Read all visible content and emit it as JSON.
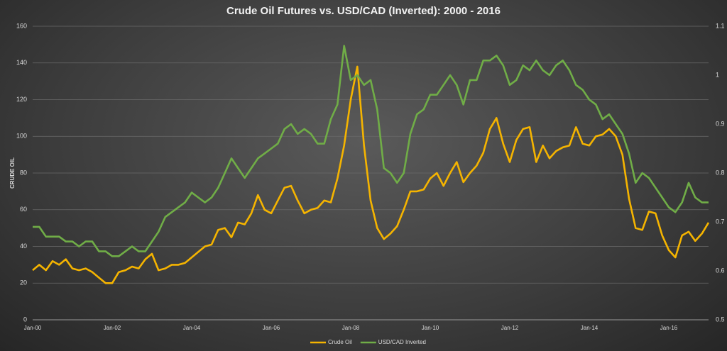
{
  "chart_data": {
    "type": "line",
    "title": "Crude Oil Futures vs. USD/CAD (Inverted): 2000 - 2016",
    "y_label": "CRUDE OIL",
    "categories": [
      "Jan-00",
      null,
      null,
      null,
      null,
      null,
      null,
      null,
      null,
      null,
      null,
      null,
      "Jan-02",
      null,
      null,
      null,
      null,
      null,
      null,
      null,
      null,
      null,
      null,
      null,
      "Jan-04",
      null,
      null,
      null,
      null,
      null,
      null,
      null,
      null,
      null,
      null,
      null,
      "Jan-06",
      null,
      null,
      null,
      null,
      null,
      null,
      null,
      null,
      null,
      null,
      null,
      "Jan-08",
      null,
      null,
      null,
      null,
      null,
      null,
      null,
      null,
      null,
      null,
      null,
      "Jan-10",
      null,
      null,
      null,
      null,
      null,
      null,
      null,
      null,
      null,
      null,
      null,
      "Jan-12",
      null,
      null,
      null,
      null,
      null,
      null,
      null,
      null,
      null,
      null,
      null,
      "Jan-14",
      null,
      null,
      null,
      null,
      null,
      null,
      null,
      null,
      null,
      null,
      null,
      "Jan-16",
      null,
      null,
      null,
      null,
      null,
      null
    ],
    "series": [
      {
        "name": "Crude Oil",
        "color": "#f5b400",
        "values": [
          27,
          30,
          27,
          32,
          30,
          33,
          28,
          27,
          28,
          26,
          23,
          20,
          20,
          26,
          27,
          29,
          28,
          33,
          36,
          27,
          28,
          30,
          30,
          31,
          34,
          37,
          40,
          41,
          49,
          50,
          45,
          53,
          52,
          58,
          68,
          60,
          58,
          65,
          72,
          73,
          65,
          58,
          60,
          61,
          65,
          64,
          77,
          95,
          120,
          138,
          95,
          65,
          50,
          44,
          47,
          51,
          60,
          70,
          70,
          71,
          77,
          80,
          73,
          80,
          86,
          75,
          80,
          84,
          91,
          104,
          110,
          96,
          86,
          98,
          104,
          105,
          86,
          95,
          88,
          92,
          94,
          95,
          105,
          96,
          95,
          100,
          101,
          104,
          100,
          90,
          66,
          50,
          49,
          59,
          58,
          46,
          38,
          34,
          46,
          48,
          43,
          47,
          53
        ]
      },
      {
        "name": "USD/CAD Inverted",
        "color": "#70ad47",
        "axis": "y2",
        "values": [
          0.69,
          0.69,
          0.67,
          0.67,
          0.67,
          0.66,
          0.66,
          0.65,
          0.66,
          0.66,
          0.64,
          0.64,
          0.63,
          0.63,
          0.64,
          0.65,
          0.64,
          0.64,
          0.66,
          0.68,
          0.71,
          0.72,
          0.73,
          0.74,
          0.76,
          0.75,
          0.74,
          0.75,
          0.77,
          0.8,
          0.83,
          0.81,
          0.79,
          0.81,
          0.83,
          0.84,
          0.85,
          0.86,
          0.89,
          0.9,
          0.88,
          0.89,
          0.88,
          0.86,
          0.86,
          0.91,
          0.94,
          1.06,
          0.99,
          1,
          0.98,
          0.99,
          0.93,
          0.81,
          0.8,
          0.78,
          0.8,
          0.88,
          0.92,
          0.93,
          0.96,
          0.96,
          0.98,
          1,
          0.98,
          0.94,
          0.99,
          0.99,
          1.03,
          1.03,
          1.04,
          1.02,
          0.98,
          0.99,
          1.02,
          1.01,
          1.03,
          1.01,
          1,
          1.02,
          1.03,
          1.01,
          0.98,
          0.97,
          0.95,
          0.94,
          0.91,
          0.92,
          0.9,
          0.88,
          0.84,
          0.78,
          0.8,
          0.79,
          0.77,
          0.75,
          0.73,
          0.72,
          0.74,
          0.78,
          0.75,
          0.74,
          0.74
        ]
      }
    ],
    "ylim": [
      0,
      160
    ],
    "yticks": [
      0,
      20,
      40,
      60,
      80,
      100,
      120,
      140,
      160
    ],
    "y2lim": [
      0.5,
      1.1
    ],
    "y2ticks": [
      0.5,
      0.6,
      0.7,
      0.8,
      0.9,
      1,
      1.1
    ],
    "grid": true,
    "legend": "bottom"
  }
}
